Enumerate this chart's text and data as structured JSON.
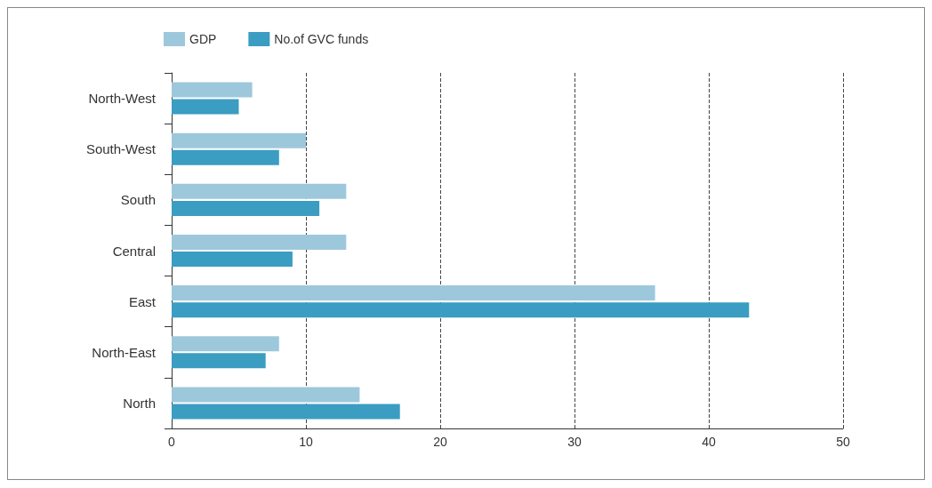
{
  "chart_data": {
    "type": "bar",
    "orientation": "horizontal",
    "categories": [
      "North-West",
      "South-West",
      "South",
      "Central",
      "East",
      "North-East",
      "North"
    ],
    "series": [
      {
        "name": "GDP",
        "color": "#9dc8dc",
        "values": [
          6,
          10,
          13,
          13,
          36,
          8,
          14
        ]
      },
      {
        "name": "No.of GVC funds",
        "color": "#3a9dc1",
        "values": [
          5,
          8,
          11,
          9,
          43,
          7,
          17
        ]
      }
    ],
    "xlim": [
      0,
      50
    ],
    "xticks": [
      0,
      10,
      20,
      30,
      40,
      50
    ],
    "grid": "x",
    "legend": "top left"
  }
}
